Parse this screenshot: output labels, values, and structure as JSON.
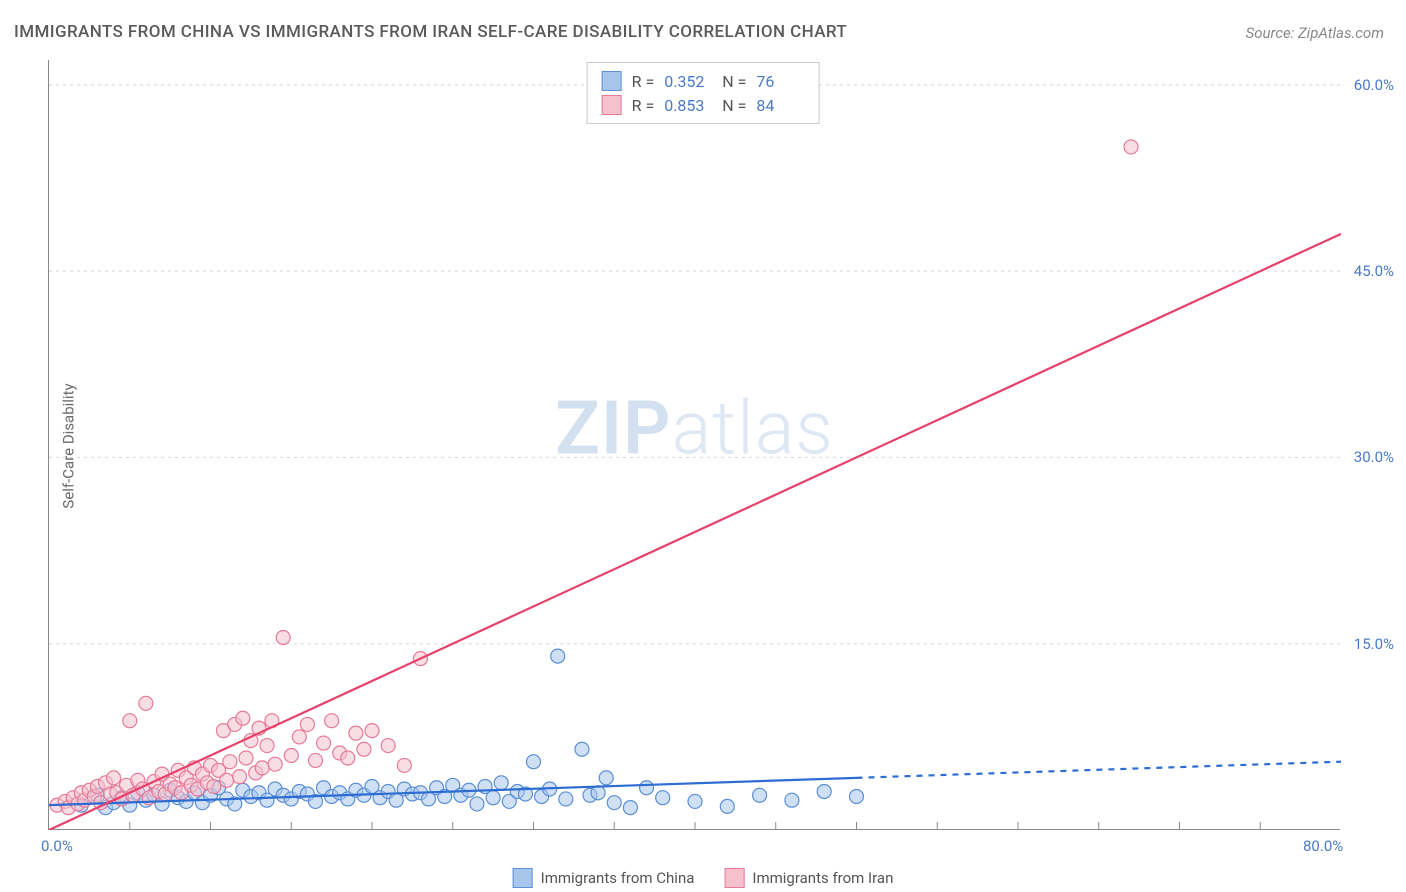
{
  "title": "IMMIGRANTS FROM CHINA VS IMMIGRANTS FROM IRAN SELF-CARE DISABILITY CORRELATION CHART",
  "source": "Source: ZipAtlas.com",
  "y_axis_label": "Self-Care Disability",
  "watermark": {
    "bold": "ZIP",
    "light": "atlas"
  },
  "chart": {
    "type": "scatter",
    "background_color": "#ffffff",
    "grid_color": "#d8d8d8",
    "axis_color": "#888888",
    "tick_label_color": "#4a7ac7",
    "tick_fontsize": 15,
    "xlim": [
      0,
      80
    ],
    "ylim": [
      0,
      62
    ],
    "x_ticks_major": [
      0,
      80
    ],
    "x_ticks_minor_step": 5,
    "y_ticks": [
      15,
      30,
      45,
      60
    ],
    "x_tick_labels": {
      "0": "0.0%",
      "80": "80.0%"
    },
    "y_tick_labels": {
      "15": "15.0%",
      "30": "30.0%",
      "45": "45.0%",
      "60": "60.0%"
    },
    "marker_radius": 7,
    "marker_opacity": 0.55,
    "series": [
      {
        "name": "Immigrants from China",
        "fill_color": "#a8c6ec",
        "stroke_color": "#5b8fd6",
        "line_color": "#2d6cd0",
        "line_width": 2.2,
        "R": "0.352",
        "N": "76",
        "trend": {
          "x1": 0,
          "y1": 2.0,
          "x2": 50,
          "y2": 4.2,
          "dash_from_x": 50,
          "x3": 80,
          "y3": 5.5
        },
        "points": [
          [
            2,
            2.0
          ],
          [
            3,
            2.8
          ],
          [
            3.5,
            1.8
          ],
          [
            4,
            2.2
          ],
          [
            4.5,
            2.6
          ],
          [
            5,
            2.0
          ],
          [
            5.5,
            3.0
          ],
          [
            6,
            2.4
          ],
          [
            6.5,
            2.8
          ],
          [
            7,
            2.1
          ],
          [
            7.5,
            3.2
          ],
          [
            8,
            2.6
          ],
          [
            8.5,
            2.3
          ],
          [
            9,
            3.0
          ],
          [
            9.5,
            2.2
          ],
          [
            10,
            2.8
          ],
          [
            10.5,
            3.4
          ],
          [
            11,
            2.5
          ],
          [
            11.5,
            2.1
          ],
          [
            12,
            3.2
          ],
          [
            12.5,
            2.7
          ],
          [
            13,
            3.0
          ],
          [
            13.5,
            2.4
          ],
          [
            14,
            3.3
          ],
          [
            14.5,
            2.8
          ],
          [
            15,
            2.5
          ],
          [
            15.5,
            3.1
          ],
          [
            16,
            2.9
          ],
          [
            16.5,
            2.3
          ],
          [
            17,
            3.4
          ],
          [
            17.5,
            2.7
          ],
          [
            18,
            3.0
          ],
          [
            18.5,
            2.5
          ],
          [
            19,
            3.2
          ],
          [
            19.5,
            2.8
          ],
          [
            20,
            3.5
          ],
          [
            20.5,
            2.6
          ],
          [
            21,
            3.1
          ],
          [
            21.5,
            2.4
          ],
          [
            22,
            3.3
          ],
          [
            22.5,
            2.9
          ],
          [
            23,
            3.0
          ],
          [
            23.5,
            2.5
          ],
          [
            24,
            3.4
          ],
          [
            24.5,
            2.7
          ],
          [
            25,
            3.6
          ],
          [
            25.5,
            2.8
          ],
          [
            26,
            3.2
          ],
          [
            26.5,
            2.1
          ],
          [
            27,
            3.5
          ],
          [
            27.5,
            2.6
          ],
          [
            28,
            3.8
          ],
          [
            28.5,
            2.3
          ],
          [
            29,
            3.1
          ],
          [
            29.5,
            2.9
          ],
          [
            30,
            5.5
          ],
          [
            30.5,
            2.7
          ],
          [
            31,
            3.3
          ],
          [
            31.5,
            14.0
          ],
          [
            32,
            2.5
          ],
          [
            33,
            6.5
          ],
          [
            33.5,
            2.8
          ],
          [
            34,
            3.0
          ],
          [
            34.5,
            4.2
          ],
          [
            35,
            2.2
          ],
          [
            36,
            1.8
          ],
          [
            37,
            3.4
          ],
          [
            38,
            2.6
          ],
          [
            40,
            2.3
          ],
          [
            42,
            1.9
          ],
          [
            44,
            2.8
          ],
          [
            46,
            2.4
          ],
          [
            48,
            3.1
          ],
          [
            50,
            2.7
          ]
        ]
      },
      {
        "name": "Immigrants from Iran",
        "fill_color": "#f4c1cd",
        "stroke_color": "#e67a97",
        "line_color": "#e6416b",
        "line_width": 2.2,
        "R": "0.853",
        "N": "84",
        "trend": {
          "x1": 0,
          "y1": 0.0,
          "x2": 80,
          "y2": 48.0
        },
        "points": [
          [
            0.5,
            2.0
          ],
          [
            1,
            2.3
          ],
          [
            1.2,
            1.8
          ],
          [
            1.5,
            2.6
          ],
          [
            1.8,
            2.1
          ],
          [
            2,
            3.0
          ],
          [
            2.2,
            2.4
          ],
          [
            2.5,
            3.2
          ],
          [
            2.8,
            2.7
          ],
          [
            3,
            3.5
          ],
          [
            3.2,
            2.2
          ],
          [
            3.5,
            3.8
          ],
          [
            3.8,
            2.9
          ],
          [
            4,
            4.2
          ],
          [
            4.2,
            3.0
          ],
          [
            4.5,
            2.5
          ],
          [
            4.8,
            3.6
          ],
          [
            5,
            8.8
          ],
          [
            5.2,
            2.8
          ],
          [
            5.5,
            4.0
          ],
          [
            5.8,
            3.3
          ],
          [
            6,
            10.2
          ],
          [
            6.2,
            2.6
          ],
          [
            6.5,
            3.9
          ],
          [
            6.8,
            3.1
          ],
          [
            7,
            4.5
          ],
          [
            7.2,
            2.9
          ],
          [
            7.5,
            3.7
          ],
          [
            7.8,
            3.4
          ],
          [
            8,
            4.8
          ],
          [
            8.2,
            3.0
          ],
          [
            8.5,
            4.2
          ],
          [
            8.8,
            3.6
          ],
          [
            9,
            5.0
          ],
          [
            9.2,
            3.3
          ],
          [
            9.5,
            4.5
          ],
          [
            9.8,
            3.8
          ],
          [
            10,
            5.2
          ],
          [
            10.2,
            3.5
          ],
          [
            10.5,
            4.8
          ],
          [
            10.8,
            8.0
          ],
          [
            11,
            4.0
          ],
          [
            11.2,
            5.5
          ],
          [
            11.5,
            8.5
          ],
          [
            11.8,
            4.3
          ],
          [
            12,
            9.0
          ],
          [
            12.2,
            5.8
          ],
          [
            12.5,
            7.2
          ],
          [
            12.8,
            4.6
          ],
          [
            13,
            8.2
          ],
          [
            13.2,
            5.0
          ],
          [
            13.5,
            6.8
          ],
          [
            13.8,
            8.8
          ],
          [
            14,
            5.3
          ],
          [
            14.5,
            15.5
          ],
          [
            15,
            6.0
          ],
          [
            15.5,
            7.5
          ],
          [
            16,
            8.5
          ],
          [
            16.5,
            5.6
          ],
          [
            17,
            7.0
          ],
          [
            17.5,
            8.8
          ],
          [
            18,
            6.2
          ],
          [
            18.5,
            5.8
          ],
          [
            19,
            7.8
          ],
          [
            19.5,
            6.5
          ],
          [
            20,
            8.0
          ],
          [
            21,
            6.8
          ],
          [
            22,
            5.2
          ],
          [
            23,
            13.8
          ],
          [
            67,
            55.0
          ]
        ]
      }
    ]
  },
  "legend_top_labels": {
    "R": "R =",
    "N": "N ="
  },
  "legend_bottom": [
    {
      "label": "Immigrants from China",
      "fill": "#a8c6ec",
      "stroke": "#5b8fd6"
    },
    {
      "label": "Immigrants from Iran",
      "fill": "#f4c1cd",
      "stroke": "#e67a97"
    }
  ]
}
